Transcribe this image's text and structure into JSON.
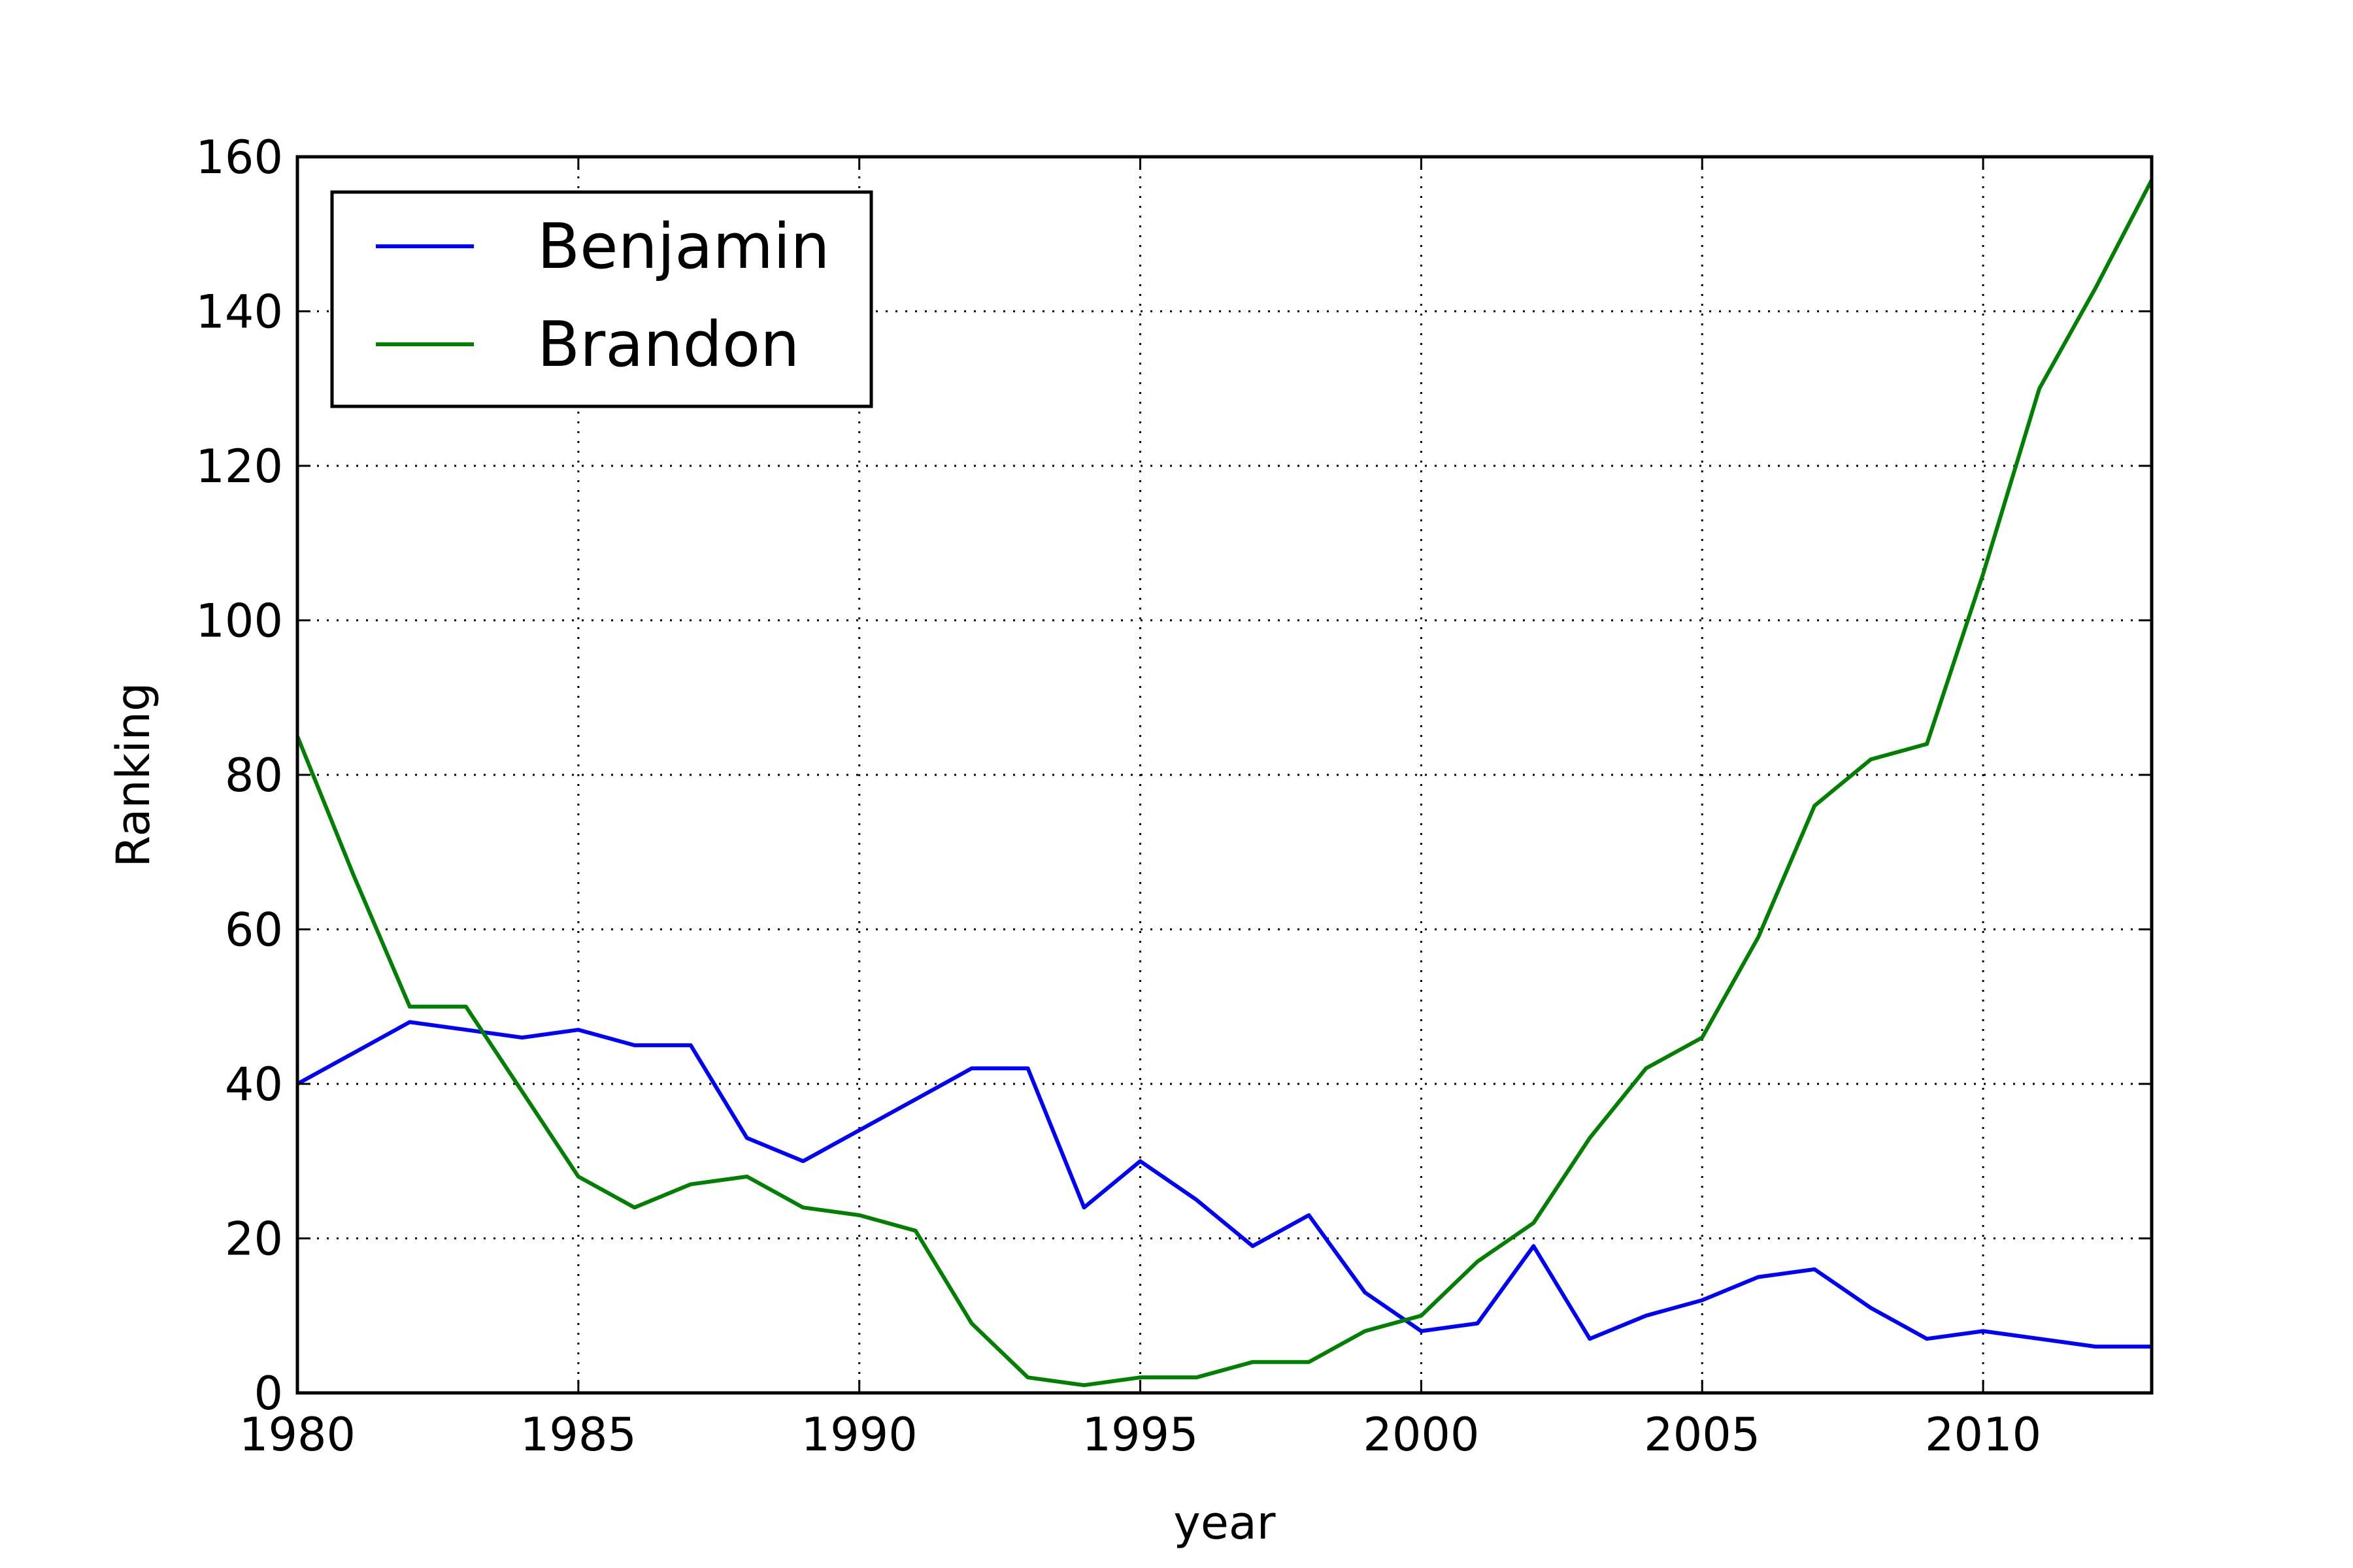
{
  "chart_data": {
    "type": "line",
    "xlabel": "year",
    "ylabel": "Ranking",
    "xlim": [
      1980,
      2013
    ],
    "ylim": [
      0,
      160
    ],
    "x_ticks": [
      1980,
      1985,
      1990,
      1995,
      2000,
      2005,
      2010
    ],
    "y_ticks": [
      0,
      20,
      40,
      60,
      80,
      100,
      120,
      140,
      160
    ],
    "grid": true,
    "legend_position": "top-left",
    "x": [
      1980,
      1981,
      1982,
      1983,
      1984,
      1985,
      1986,
      1987,
      1988,
      1989,
      1990,
      1991,
      1992,
      1993,
      1994,
      1995,
      1996,
      1997,
      1998,
      1999,
      2000,
      2001,
      2002,
      2003,
      2004,
      2005,
      2006,
      2007,
      2008,
      2009,
      2010,
      2011,
      2012,
      2013
    ],
    "series": [
      {
        "name": "Benjamin",
        "color": "#0000ff",
        "values": [
          40,
          44,
          48,
          47,
          46,
          47,
          45,
          45,
          33,
          30,
          34,
          38,
          42,
          42,
          24,
          30,
          25,
          19,
          23,
          13,
          8,
          9,
          19,
          7,
          10,
          12,
          15,
          16,
          11,
          7,
          8,
          7,
          6,
          6
        ]
      },
      {
        "name": "Brandon",
        "color": "#008000",
        "values": [
          85,
          67,
          50,
          50,
          39,
          28,
          24,
          27,
          28,
          24,
          23,
          21,
          9,
          2,
          1,
          2,
          2,
          4,
          4,
          8,
          10,
          17,
          22,
          33,
          42,
          46,
          59,
          76,
          82,
          84,
          106,
          130,
          143,
          157
        ]
      }
    ]
  }
}
